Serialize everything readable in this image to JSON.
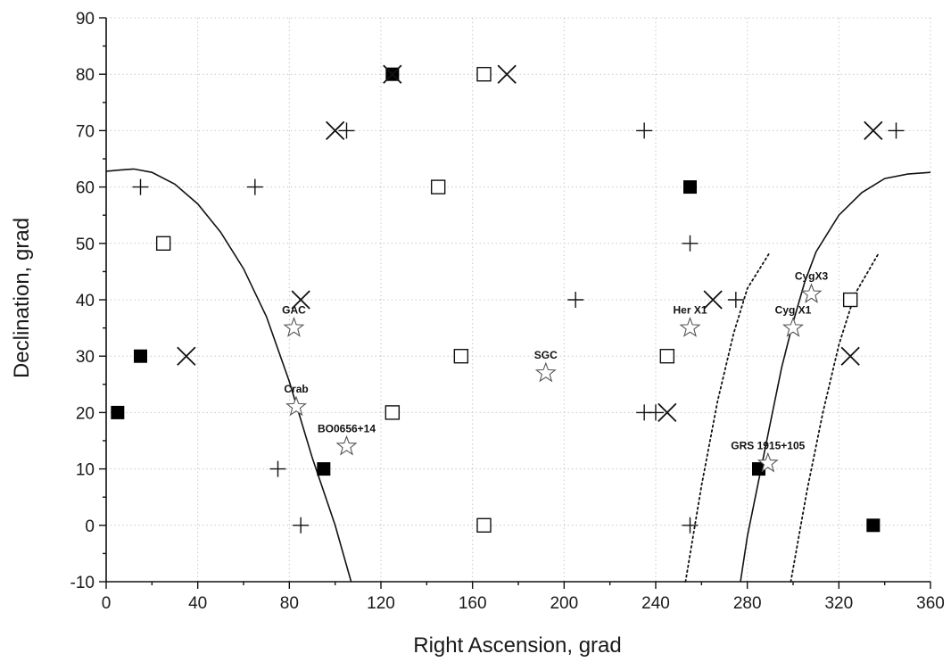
{
  "chart_data": {
    "type": "scatter",
    "title": "",
    "xlabel": "Right Ascension,   grad",
    "ylabel": "Declination,    grad",
    "xlim": [
      0,
      360
    ],
    "ylim": [
      -10,
      90
    ],
    "xticks": [
      0,
      40,
      80,
      120,
      160,
      200,
      240,
      280,
      320,
      360
    ],
    "yticks": [
      -10,
      0,
      10,
      20,
      30,
      40,
      50,
      60,
      70,
      80,
      90
    ],
    "grid": true,
    "series": [
      {
        "marker": "filled-square",
        "points": [
          [
            5,
            20
          ],
          [
            15,
            30
          ],
          [
            95,
            10
          ],
          [
            125,
            80
          ],
          [
            255,
            60
          ],
          [
            285,
            10
          ],
          [
            335,
            0
          ]
        ]
      },
      {
        "marker": "open-square",
        "points": [
          [
            25,
            50
          ],
          [
            125,
            20
          ],
          [
            145,
            60
          ],
          [
            155,
            30
          ],
          [
            165,
            80
          ],
          [
            165,
            0
          ],
          [
            245,
            30
          ],
          [
            325,
            40
          ]
        ]
      },
      {
        "marker": "plus",
        "points": [
          [
            15,
            60
          ],
          [
            65,
            60
          ],
          [
            75,
            10
          ],
          [
            85,
            0
          ],
          [
            105,
            70
          ],
          [
            205,
            40
          ],
          [
            235,
            70
          ],
          [
            235,
            20
          ],
          [
            240,
            20
          ],
          [
            255,
            50
          ],
          [
            255,
            0
          ],
          [
            275,
            40
          ],
          [
            345,
            70
          ]
        ]
      },
      {
        "marker": "cross",
        "points": [
          [
            35,
            30
          ],
          [
            85,
            40
          ],
          [
            100,
            70
          ],
          [
            125,
            80
          ],
          [
            175,
            80
          ],
          [
            245,
            20
          ],
          [
            265,
            40
          ],
          [
            325,
            30
          ],
          [
            335,
            70
          ]
        ]
      },
      {
        "marker": "star",
        "points": [
          {
            "x": 82,
            "y": 35,
            "label": "GAC"
          },
          {
            "x": 83,
            "y": 21,
            "label": "Crab"
          },
          {
            "x": 105,
            "y": 14,
            "label": "BO0656+14"
          },
          {
            "x": 192,
            "y": 27,
            "label": "SGC"
          },
          {
            "x": 255,
            "y": 35,
            "label": "Her X1"
          },
          {
            "x": 300,
            "y": 35,
            "label": "Cyg X1"
          },
          {
            "x": 308,
            "y": 41,
            "label": "CygX3"
          },
          {
            "x": 289,
            "y": 11,
            "label": "GRS 1915+105"
          }
        ]
      }
    ],
    "curves": [
      {
        "style": "solid",
        "points": [
          [
            0,
            62.8
          ],
          [
            6,
            63
          ],
          [
            12,
            63.2
          ],
          [
            20,
            62.6
          ],
          [
            30,
            60.5
          ],
          [
            40,
            57
          ],
          [
            50,
            52
          ],
          [
            60,
            45.5
          ],
          [
            70,
            37
          ],
          [
            80,
            25.5
          ],
          [
            90,
            12
          ],
          [
            100,
            0
          ],
          [
            107,
            -10
          ]
        ]
      },
      {
        "style": "solid",
        "points": [
          [
            277,
            -10
          ],
          [
            280,
            -2
          ],
          [
            285,
            8
          ],
          [
            290,
            18
          ],
          [
            295,
            28
          ],
          [
            300,
            36
          ],
          [
            305,
            43
          ],
          [
            310,
            48.5
          ],
          [
            320,
            55
          ],
          [
            330,
            59
          ],
          [
            340,
            61.5
          ],
          [
            350,
            62.3
          ],
          [
            360,
            62.6
          ]
        ]
      },
      {
        "style": "dotted",
        "points": [
          [
            253,
            -10
          ],
          [
            260,
            7
          ],
          [
            267,
            22
          ],
          [
            274,
            34
          ],
          [
            280,
            42
          ],
          [
            290,
            48.5
          ]
        ]
      },
      {
        "style": "dotted",
        "points": [
          [
            299,
            -10
          ],
          [
            306,
            6
          ],
          [
            313,
            20
          ],
          [
            320,
            32
          ],
          [
            327,
            41
          ],
          [
            337,
            48
          ]
        ]
      }
    ]
  }
}
